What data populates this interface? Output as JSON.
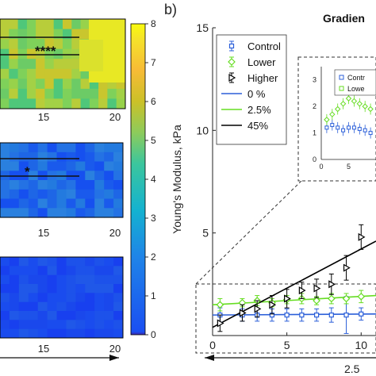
{
  "figure": {
    "panel_b_label": "b)",
    "panel_b_title": "Gradien"
  },
  "colorbar": {
    "label": "Young's Modulus, kPa",
    "ticks": [
      "0",
      "1",
      "2",
      "3",
      "4",
      "5",
      "6",
      "7",
      "8"
    ],
    "range": [
      0,
      8
    ],
    "colormap": "parula"
  },
  "heatmaps": {
    "x_ticks": [
      "15",
      "20"
    ],
    "panels": [
      {
        "id": "top",
        "level": "high",
        "annotation": "****",
        "base_hex": "#8cd44a"
      },
      {
        "id": "middle",
        "level": "medium",
        "annotation": "*",
        "base_hex": "#1e64e8"
      },
      {
        "id": "bottom",
        "level": "low",
        "annotation": "",
        "base_hex": "#1a48ec"
      }
    ],
    "bottom_axis_label": "2.5"
  },
  "colors": {
    "control": "#2b5fd9",
    "lower": "#66dd22",
    "higher": "#000000",
    "fit_0": "#2b5fd9",
    "fit_25": "#66dd22",
    "fit_45": "#000000"
  },
  "chart_data": {
    "type": "scatter",
    "xlim": [
      0,
      11
    ],
    "ylim": [
      0,
      15
    ],
    "x_ticks": [
      0,
      5,
      10
    ],
    "y_ticks": [
      0,
      5,
      10,
      15
    ],
    "x_tick_labels": [
      "0",
      "5",
      "10"
    ],
    "y_tick_labels": [
      "",
      "5",
      "10",
      "15"
    ],
    "ylabel": "",
    "xlabel": "2.5",
    "grid": false,
    "legend_position": "top-left",
    "series": [
      {
        "name": "Control",
        "marker": "square",
        "color": "#2b5fd9",
        "x": [
          0.5,
          2,
          3,
          4,
          5,
          6,
          7,
          8,
          9,
          10
        ],
        "y": [
          1.0,
          1.0,
          1.0,
          1.0,
          1.0,
          1.0,
          1.0,
          1.0,
          1.0,
          1.05
        ],
        "err": [
          0.35,
          0.3,
          0.3,
          0.3,
          0.3,
          0.3,
          0.3,
          0.35,
          0.9,
          0.3
        ]
      },
      {
        "name": "Lower",
        "marker": "diamond",
        "color": "#66dd22",
        "x": [
          0.5,
          2,
          3,
          4,
          5,
          6,
          7,
          8,
          9,
          10
        ],
        "y": [
          1.5,
          1.6,
          1.7,
          1.6,
          1.75,
          1.8,
          1.7,
          1.8,
          1.8,
          1.9
        ],
        "err": [
          0.3,
          0.2,
          0.25,
          0.2,
          0.2,
          0.25,
          0.2,
          0.25,
          0.25,
          0.3
        ]
      },
      {
        "name": "Higher",
        "marker": "triangle-right",
        "color": "#000000",
        "x": [
          0.5,
          2,
          3,
          4,
          5,
          6,
          7,
          8,
          9,
          10
        ],
        "y": [
          0.6,
          1.1,
          1.3,
          1.5,
          1.8,
          2.2,
          2.3,
          2.5,
          3.3,
          4.8
        ],
        "err": [
          0.4,
          0.4,
          0.4,
          0.45,
          0.45,
          0.4,
          0.45,
          0.5,
          0.6,
          0.6
        ]
      }
    ],
    "fits": [
      {
        "name": "0 %",
        "color": "#2b5fd9",
        "x": [
          0,
          11
        ],
        "y": [
          1.0,
          1.05
        ]
      },
      {
        "name": "2.5%",
        "color": "#66dd22",
        "x": [
          0,
          11
        ],
        "y": [
          1.5,
          1.95
        ]
      },
      {
        "name": "45%",
        "color": "#000000",
        "x": [
          0,
          11
        ],
        "y": [
          0.4,
          4.6
        ]
      }
    ],
    "inset": {
      "xlim": [
        0,
        10
      ],
      "ylim": [
        0,
        3.5
      ],
      "x_tick_labels": [
        "0",
        "5"
      ],
      "y_tick_labels": [
        "0",
        "1",
        "2",
        "3"
      ],
      "legend": [
        "Contr",
        "Lowe"
      ],
      "series": [
        {
          "name": "Control",
          "color": "#2b5fd9",
          "x": [
            1,
            2,
            3,
            4,
            5,
            6,
            7,
            8,
            9
          ],
          "y": [
            1.2,
            1.3,
            1.2,
            1.1,
            1.2,
            1.2,
            1.15,
            1.1,
            1.0
          ]
        },
        {
          "name": "Lower",
          "color": "#66dd22",
          "x": [
            1,
            2,
            3,
            4,
            5,
            6,
            7,
            8,
            9
          ],
          "y": [
            1.5,
            1.7,
            1.9,
            2.1,
            2.3,
            2.2,
            2.1,
            2.0,
            1.9
          ]
        }
      ]
    }
  }
}
